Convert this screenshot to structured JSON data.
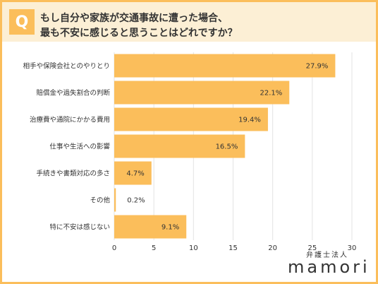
{
  "header": {
    "badge": "Q",
    "title_line1": "もし自分や家族が交通事故に遭った場合、",
    "title_line2": "最も不安に感じると思うことはどれですか？"
  },
  "colors": {
    "bar": "#FBBE5B",
    "frame": "#FBBE5B",
    "header_bg": "#FCEFD5",
    "grid": "#E3E3E3",
    "text": "#333333"
  },
  "chart_data": {
    "type": "bar",
    "orientation": "horizontal",
    "categories": [
      "相手や保険会社とのやりとり",
      "賠償金や過失割合の判断",
      "治療費や通院にかかる費用",
      "仕事や生活への影響",
      "手続きや書類対応の多さ",
      "その他",
      "特に不安は感じない"
    ],
    "values": [
      27.9,
      22.1,
      19.4,
      16.5,
      4.7,
      0.2,
      9.1
    ],
    "value_labels": [
      "27.9%",
      "22.1%",
      "19.4%",
      "16.5%",
      "4.7%",
      "0.2%",
      "9.1%"
    ],
    "xlim": [
      0,
      30
    ],
    "x_ticks": [
      0,
      5,
      10,
      15,
      20,
      25,
      30
    ],
    "grid": true,
    "title": "もし自分や家族が交通事故に遭った場合、最も不安に感じると思うことはどれですか？",
    "xlabel": "",
    "ylabel": ""
  },
  "logo": {
    "subtitle": "弁護士法人",
    "name": "mamori"
  }
}
